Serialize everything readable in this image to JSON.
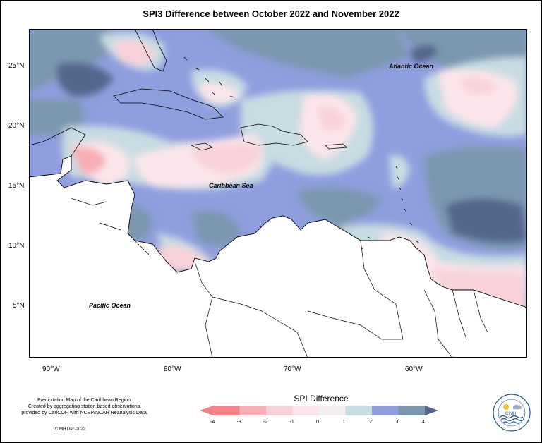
{
  "title": "SPI3 Difference between October 2022 and November 2022",
  "axes": {
    "lat_labels": [
      "25°N",
      "20°N",
      "15°N",
      "10°N",
      "5°N"
    ],
    "lon_labels": [
      "90°W",
      "80°W",
      "70°W",
      "60°W"
    ]
  },
  "map_labels": {
    "atlantic": "Atlantic Ocean",
    "caribbean": "Caribbean Sea",
    "pacific": "Pacific Ocean"
  },
  "legend": {
    "title": "SPI Difference",
    "ticks": [
      "-4",
      "-3",
      "-2",
      "-1",
      "0",
      "1",
      "2",
      "3",
      "4"
    ],
    "colors": [
      "#f4838a",
      "#f7aeb4",
      "#f8d2d8",
      "#fbe5ea",
      "#f5eef0",
      "#c8dce3",
      "#8f9ede",
      "#7b98b0",
      "#55668c"
    ]
  },
  "footer": {
    "line1": "Precipitation Map of the Caribbean Region.",
    "line2": "Created by aggregating station based observations,",
    "line3": "provided by CariCOF, with NCEP/NCAR Reanalysis Data.",
    "credit": "CIMH Dec-2022"
  },
  "logo": {
    "acronym": "CIMH"
  }
}
